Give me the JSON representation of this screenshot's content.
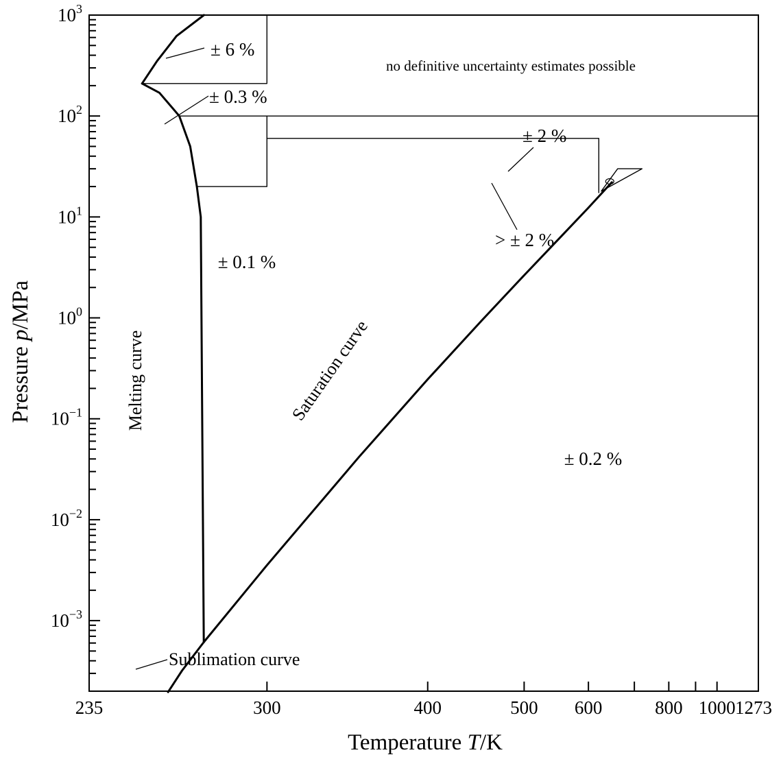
{
  "chart_data": {
    "type": "line",
    "title": "",
    "xlabel": {
      "prefix": "Temperature ",
      "symbol": "T",
      "unit": "/K"
    },
    "ylabel": {
      "prefix": "Pressure ",
      "symbol": "p",
      "unit": "/MPa"
    },
    "x_scale": "reciprocal",
    "y_scale": "log",
    "xlim": [
      235,
      1273
    ],
    "ylim": [
      0.0002,
      1000
    ],
    "x_ticks": [
      {
        "value": 235,
        "label": "235"
      },
      {
        "value": 300,
        "label": "300"
      },
      {
        "value": 400,
        "label": "400"
      },
      {
        "value": 500,
        "label": "500"
      },
      {
        "value": 600,
        "label": "600"
      },
      {
        "value": 700,
        "label": ""
      },
      {
        "value": 800,
        "label": "800"
      },
      {
        "value": 900,
        "label": ""
      },
      {
        "value": 1000,
        "label": "1000"
      },
      {
        "value": 1273,
        "label": "1273"
      }
    ],
    "y_ticks": [
      {
        "value": 0.001,
        "base": "10",
        "exp": "−3"
      },
      {
        "value": 0.01,
        "base": "10",
        "exp": "−2"
      },
      {
        "value": 0.1,
        "base": "10",
        "exp": "−1"
      },
      {
        "value": 1,
        "base": "10",
        "exp": "0"
      },
      {
        "value": 10,
        "base": "10",
        "exp": "1"
      },
      {
        "value": 100,
        "base": "10",
        "exp": "2"
      },
      {
        "value": 1000,
        "base": "10",
        "exp": "3"
      }
    ],
    "grid": false,
    "series": [
      {
        "name": "Melting curve",
        "points": [
          [
            251.2,
            209.9
          ],
          [
            256.2,
            350
          ],
          [
            263,
            620
          ],
          [
            273.2,
            1000
          ]
        ]
      },
      {
        "name": "Melting curve",
        "points": [
          [
            251.2,
            209.9
          ],
          [
            257,
            170
          ],
          [
            264,
            100
          ],
          [
            268,
            50
          ],
          [
            270.5,
            20
          ],
          [
            272,
            10
          ],
          [
            273.16,
            0.000612
          ]
        ]
      },
      {
        "name": "Saturation curve",
        "points": [
          [
            273.16,
            0.000612
          ],
          [
            300,
            0.00354
          ],
          [
            350,
            0.0417
          ],
          [
            400,
            0.2458
          ],
          [
            450,
            0.932
          ],
          [
            500,
            2.64
          ],
          [
            550,
            6.12
          ],
          [
            600,
            12.34
          ],
          [
            647.1,
            22.064
          ]
        ]
      },
      {
        "name": "Sublimation curve",
        "points": [
          [
            273.16,
            0.000612
          ],
          [
            265,
            0.00032
          ],
          [
            260,
            0.000196
          ]
        ]
      }
    ],
    "regions": [
      {
        "label": "± 0.1 %",
        "at": [
          320,
          3
        ]
      },
      {
        "label": "± 0.2 %",
        "at": [
          820,
          0.04
        ]
      },
      {
        "label": "± 0.3 %",
        "at": [
          320,
          120
        ]
      },
      {
        "label": "± 6 %",
        "at": [
          320,
          390
        ]
      },
      {
        "label": "± 2 %",
        "at": [
          730,
          60
        ]
      },
      {
        "label": "> ± 2 %",
        "at": [
          700,
          5
        ]
      },
      {
        "label": "no definitive uncertainty estimates possible",
        "at": [
          470,
          180
        ]
      }
    ],
    "curve_labels": [
      {
        "text": "Melting curve"
      },
      {
        "text": "Saturation curve"
      },
      {
        "text": "Sublimation curve"
      }
    ]
  }
}
